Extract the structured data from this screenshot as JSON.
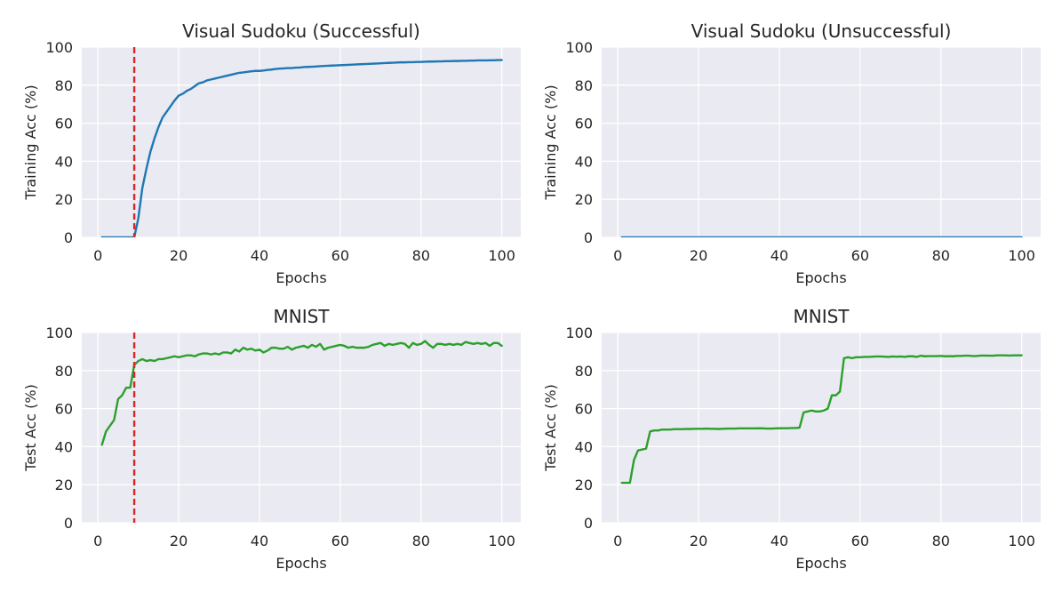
{
  "chart_data": [
    {
      "type": "line",
      "title": "Visual Sudoku (Successful)",
      "xlabel": "Epochs",
      "ylabel": "Training Acc (%)",
      "xlim": [
        1,
        100
      ],
      "ylim": [
        0,
        100
      ],
      "xticks": [
        "0",
        "20",
        "40",
        "60",
        "80",
        "100"
      ],
      "yticks": [
        "0",
        "20",
        "40",
        "60",
        "80",
        "100"
      ],
      "grid": true,
      "vline": {
        "x": 9,
        "color": "#d62728",
        "style": "dashed"
      },
      "series": [
        {
          "color": "#1f77b4",
          "x": [
            1,
            2,
            3,
            4,
            5,
            6,
            7,
            8,
            9,
            10,
            11,
            12,
            13,
            14,
            15,
            16,
            17,
            18,
            19,
            20,
            21,
            22,
            23,
            24,
            25,
            26,
            27,
            28,
            29,
            30,
            31,
            32,
            33,
            34,
            35,
            36,
            37,
            38,
            39,
            40,
            41,
            42,
            43,
            44,
            45,
            46,
            47,
            48,
            49,
            50,
            51,
            52,
            53,
            54,
            55,
            56,
            57,
            58,
            59,
            60,
            61,
            62,
            63,
            64,
            65,
            66,
            67,
            68,
            69,
            70,
            71,
            72,
            73,
            74,
            75,
            76,
            77,
            78,
            79,
            80,
            81,
            82,
            83,
            84,
            85,
            86,
            87,
            88,
            89,
            90,
            91,
            92,
            93,
            94,
            95,
            96,
            97,
            98,
            99,
            100
          ],
          "values": [
            0,
            0,
            0,
            0,
            0,
            0,
            0,
            0,
            0,
            10,
            26,
            36,
            45,
            52,
            58,
            63,
            66,
            69,
            72,
            74.5,
            75.5,
            77,
            78,
            79.5,
            81,
            81.5,
            82.5,
            83,
            83.5,
            84,
            84.5,
            85,
            85.5,
            86,
            86.5,
            86.7,
            87,
            87.3,
            87.5,
            87.5,
            87.7,
            88,
            88.2,
            88.5,
            88.7,
            88.8,
            89,
            89,
            89.2,
            89.3,
            89.5,
            89.6,
            89.7,
            89.8,
            90,
            90.1,
            90.2,
            90.3,
            90.4,
            90.5,
            90.6,
            90.7,
            90.8,
            90.9,
            91,
            91.1,
            91.2,
            91.3,
            91.4,
            91.5,
            91.6,
            91.7,
            91.8,
            91.9,
            92,
            92,
            92.1,
            92.1,
            92.2,
            92.2,
            92.3,
            92.4,
            92.4,
            92.5,
            92.5,
            92.6,
            92.6,
            92.7,
            92.7,
            92.8,
            92.8,
            92.9,
            92.9,
            93,
            93,
            93,
            93.1,
            93.1,
            93.2,
            93.2
          ]
        }
      ]
    },
    {
      "type": "line",
      "title": "Visual Sudoku (Unsuccessful)",
      "xlabel": "Epochs",
      "ylabel": "Training Acc (%)",
      "xlim": [
        1,
        100
      ],
      "ylim": [
        0,
        100
      ],
      "xticks": [
        "0",
        "20",
        "40",
        "60",
        "80",
        "100"
      ],
      "yticks": [
        "0",
        "20",
        "40",
        "60",
        "80",
        "100"
      ],
      "grid": true,
      "series": [
        {
          "color": "#1f77b4",
          "x": [
            1,
            100
          ],
          "values": [
            0,
            0
          ]
        }
      ]
    },
    {
      "type": "line",
      "title": "MNIST",
      "xlabel": "Epochs",
      "ylabel": "Test Acc (%)",
      "xlim": [
        1,
        100
      ],
      "ylim": [
        0,
        100
      ],
      "xticks": [
        "0",
        "20",
        "40",
        "60",
        "80",
        "100"
      ],
      "yticks": [
        "0",
        "20",
        "40",
        "60",
        "80",
        "100"
      ],
      "grid": true,
      "vline": {
        "x": 9,
        "color": "#d62728",
        "style": "dashed"
      },
      "series": [
        {
          "color": "#2ca02c",
          "x": [
            1,
            2,
            3,
            4,
            5,
            6,
            7,
            8,
            9,
            10,
            11,
            12,
            13,
            14,
            15,
            16,
            17,
            18,
            19,
            20,
            21,
            22,
            23,
            24,
            25,
            26,
            27,
            28,
            29,
            30,
            31,
            32,
            33,
            34,
            35,
            36,
            37,
            38,
            39,
            40,
            41,
            42,
            43,
            44,
            45,
            46,
            47,
            48,
            49,
            50,
            51,
            52,
            53,
            54,
            55,
            56,
            57,
            58,
            59,
            60,
            61,
            62,
            63,
            64,
            65,
            66,
            67,
            68,
            69,
            70,
            71,
            72,
            73,
            74,
            75,
            76,
            77,
            78,
            79,
            80,
            81,
            82,
            83,
            84,
            85,
            86,
            87,
            88,
            89,
            90,
            91,
            92,
            93,
            94,
            95,
            96,
            97,
            98,
            99,
            100
          ],
          "values": [
            41,
            48,
            51,
            54,
            65,
            67,
            71,
            71,
            83,
            85,
            86,
            85,
            85.5,
            85,
            86,
            86,
            86.5,
            87,
            87.5,
            87,
            87.5,
            88,
            88,
            87.5,
            88.5,
            89,
            89,
            88.5,
            89,
            88.5,
            89.5,
            89.5,
            89,
            91,
            90,
            92,
            91,
            91.5,
            90.5,
            91,
            89.5,
            90.5,
            92,
            92,
            91.5,
            91.5,
            92.5,
            91,
            92,
            92.5,
            93,
            92,
            93.5,
            92.5,
            94,
            91,
            92,
            92.5,
            93,
            93.5,
            93,
            92,
            92.5,
            92,
            92,
            92,
            92.5,
            93.5,
            94,
            94.5,
            93,
            94,
            93.5,
            94,
            94.5,
            94,
            92,
            94.5,
            93.5,
            94,
            95.5,
            93.5,
            92,
            94,
            94,
            93.5,
            94,
            93.5,
            94,
            93.5,
            95,
            94.5,
            94,
            94.5,
            94,
            94.5,
            93,
            94.5,
            94.5,
            93
          ]
        }
      ]
    },
    {
      "type": "line",
      "title": "MNIST",
      "xlabel": "Epochs",
      "ylabel": "Test Acc (%)",
      "xlim": [
        1,
        100
      ],
      "ylim": [
        0,
        100
      ],
      "xticks": [
        "0",
        "20",
        "40",
        "60",
        "80",
        "100"
      ],
      "yticks": [
        "0",
        "20",
        "40",
        "60",
        "80",
        "100"
      ],
      "grid": true,
      "series": [
        {
          "color": "#2ca02c",
          "x": [
            1,
            2,
            3,
            4,
            5,
            6,
            7,
            8,
            9,
            10,
            11,
            12,
            13,
            14,
            15,
            16,
            17,
            18,
            19,
            20,
            21,
            22,
            23,
            24,
            25,
            26,
            27,
            28,
            29,
            30,
            31,
            32,
            33,
            34,
            35,
            36,
            37,
            38,
            39,
            40,
            41,
            42,
            43,
            44,
            45,
            46,
            47,
            48,
            49,
            50,
            51,
            52,
            53,
            54,
            55,
            56,
            57,
            58,
            59,
            60,
            61,
            62,
            63,
            64,
            65,
            66,
            67,
            68,
            69,
            70,
            71,
            72,
            73,
            74,
            75,
            76,
            77,
            78,
            79,
            80,
            81,
            82,
            83,
            84,
            85,
            86,
            87,
            88,
            89,
            90,
            91,
            92,
            93,
            94,
            95,
            96,
            97,
            98,
            99,
            100
          ],
          "values": [
            21,
            21,
            21,
            33,
            38,
            38.5,
            39,
            48,
            48.5,
            48.5,
            49,
            49,
            49,
            49.2,
            49.2,
            49.2,
            49.3,
            49.3,
            49.4,
            49.4,
            49.4,
            49.5,
            49.4,
            49.4,
            49.3,
            49.4,
            49.5,
            49.5,
            49.5,
            49.6,
            49.6,
            49.6,
            49.6,
            49.6,
            49.7,
            49.6,
            49.5,
            49.5,
            49.6,
            49.7,
            49.7,
            49.7,
            49.8,
            49.8,
            50,
            58,
            58.5,
            59,
            58.5,
            58.5,
            59,
            60,
            67,
            67,
            69,
            86.5,
            87,
            86.5,
            87,
            87,
            87.2,
            87.2,
            87.3,
            87.4,
            87.4,
            87.3,
            87.2,
            87.4,
            87.3,
            87.4,
            87.2,
            87.5,
            87.5,
            87.2,
            87.8,
            87.5,
            87.6,
            87.6,
            87.6,
            87.7,
            87.5,
            87.6,
            87.5,
            87.7,
            87.7,
            87.8,
            87.8,
            87.6,
            87.7,
            87.9,
            87.9,
            87.8,
            87.8,
            88,
            88,
            88,
            87.9,
            88,
            88,
            88
          ]
        }
      ]
    }
  ]
}
